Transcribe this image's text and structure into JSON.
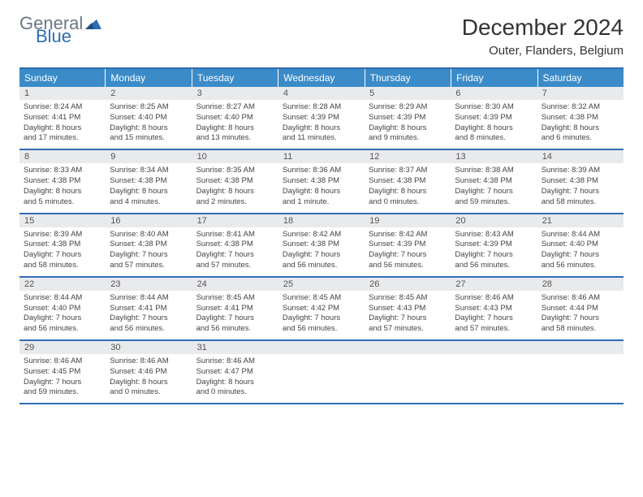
{
  "logo": {
    "general": "General",
    "blue": "Blue"
  },
  "colors": {
    "header_bg": "#3b8bc8",
    "border": "#2f6db2",
    "num_bg": "#e9eaec",
    "logo_gray": "#6b7785",
    "logo_blue": "#2f6db2"
  },
  "title": {
    "month": "December 2024",
    "location": "Outer, Flanders, Belgium"
  },
  "day_headers": [
    "Sunday",
    "Monday",
    "Tuesday",
    "Wednesday",
    "Thursday",
    "Friday",
    "Saturday"
  ],
  "weeks": [
    [
      {
        "n": "1",
        "sr": "Sunrise: 8:24 AM",
        "ss": "Sunset: 4:41 PM",
        "dl1": "Daylight: 8 hours",
        "dl2": "and 17 minutes."
      },
      {
        "n": "2",
        "sr": "Sunrise: 8:25 AM",
        "ss": "Sunset: 4:40 PM",
        "dl1": "Daylight: 8 hours",
        "dl2": "and 15 minutes."
      },
      {
        "n": "3",
        "sr": "Sunrise: 8:27 AM",
        "ss": "Sunset: 4:40 PM",
        "dl1": "Daylight: 8 hours",
        "dl2": "and 13 minutes."
      },
      {
        "n": "4",
        "sr": "Sunrise: 8:28 AM",
        "ss": "Sunset: 4:39 PM",
        "dl1": "Daylight: 8 hours",
        "dl2": "and 11 minutes."
      },
      {
        "n": "5",
        "sr": "Sunrise: 8:29 AM",
        "ss": "Sunset: 4:39 PM",
        "dl1": "Daylight: 8 hours",
        "dl2": "and 9 minutes."
      },
      {
        "n": "6",
        "sr": "Sunrise: 8:30 AM",
        "ss": "Sunset: 4:39 PM",
        "dl1": "Daylight: 8 hours",
        "dl2": "and 8 minutes."
      },
      {
        "n": "7",
        "sr": "Sunrise: 8:32 AM",
        "ss": "Sunset: 4:38 PM",
        "dl1": "Daylight: 8 hours",
        "dl2": "and 6 minutes."
      }
    ],
    [
      {
        "n": "8",
        "sr": "Sunrise: 8:33 AM",
        "ss": "Sunset: 4:38 PM",
        "dl1": "Daylight: 8 hours",
        "dl2": "and 5 minutes."
      },
      {
        "n": "9",
        "sr": "Sunrise: 8:34 AM",
        "ss": "Sunset: 4:38 PM",
        "dl1": "Daylight: 8 hours",
        "dl2": "and 4 minutes."
      },
      {
        "n": "10",
        "sr": "Sunrise: 8:35 AM",
        "ss": "Sunset: 4:38 PM",
        "dl1": "Daylight: 8 hours",
        "dl2": "and 2 minutes."
      },
      {
        "n": "11",
        "sr": "Sunrise: 8:36 AM",
        "ss": "Sunset: 4:38 PM",
        "dl1": "Daylight: 8 hours",
        "dl2": "and 1 minute."
      },
      {
        "n": "12",
        "sr": "Sunrise: 8:37 AM",
        "ss": "Sunset: 4:38 PM",
        "dl1": "Daylight: 8 hours",
        "dl2": "and 0 minutes."
      },
      {
        "n": "13",
        "sr": "Sunrise: 8:38 AM",
        "ss": "Sunset: 4:38 PM",
        "dl1": "Daylight: 7 hours",
        "dl2": "and 59 minutes."
      },
      {
        "n": "14",
        "sr": "Sunrise: 8:39 AM",
        "ss": "Sunset: 4:38 PM",
        "dl1": "Daylight: 7 hours",
        "dl2": "and 58 minutes."
      }
    ],
    [
      {
        "n": "15",
        "sr": "Sunrise: 8:39 AM",
        "ss": "Sunset: 4:38 PM",
        "dl1": "Daylight: 7 hours",
        "dl2": "and 58 minutes."
      },
      {
        "n": "16",
        "sr": "Sunrise: 8:40 AM",
        "ss": "Sunset: 4:38 PM",
        "dl1": "Daylight: 7 hours",
        "dl2": "and 57 minutes."
      },
      {
        "n": "17",
        "sr": "Sunrise: 8:41 AM",
        "ss": "Sunset: 4:38 PM",
        "dl1": "Daylight: 7 hours",
        "dl2": "and 57 minutes."
      },
      {
        "n": "18",
        "sr": "Sunrise: 8:42 AM",
        "ss": "Sunset: 4:38 PM",
        "dl1": "Daylight: 7 hours",
        "dl2": "and 56 minutes."
      },
      {
        "n": "19",
        "sr": "Sunrise: 8:42 AM",
        "ss": "Sunset: 4:39 PM",
        "dl1": "Daylight: 7 hours",
        "dl2": "and 56 minutes."
      },
      {
        "n": "20",
        "sr": "Sunrise: 8:43 AM",
        "ss": "Sunset: 4:39 PM",
        "dl1": "Daylight: 7 hours",
        "dl2": "and 56 minutes."
      },
      {
        "n": "21",
        "sr": "Sunrise: 8:44 AM",
        "ss": "Sunset: 4:40 PM",
        "dl1": "Daylight: 7 hours",
        "dl2": "and 56 minutes."
      }
    ],
    [
      {
        "n": "22",
        "sr": "Sunrise: 8:44 AM",
        "ss": "Sunset: 4:40 PM",
        "dl1": "Daylight: 7 hours",
        "dl2": "and 56 minutes."
      },
      {
        "n": "23",
        "sr": "Sunrise: 8:44 AM",
        "ss": "Sunset: 4:41 PM",
        "dl1": "Daylight: 7 hours",
        "dl2": "and 56 minutes."
      },
      {
        "n": "24",
        "sr": "Sunrise: 8:45 AM",
        "ss": "Sunset: 4:41 PM",
        "dl1": "Daylight: 7 hours",
        "dl2": "and 56 minutes."
      },
      {
        "n": "25",
        "sr": "Sunrise: 8:45 AM",
        "ss": "Sunset: 4:42 PM",
        "dl1": "Daylight: 7 hours",
        "dl2": "and 56 minutes."
      },
      {
        "n": "26",
        "sr": "Sunrise: 8:45 AM",
        "ss": "Sunset: 4:43 PM",
        "dl1": "Daylight: 7 hours",
        "dl2": "and 57 minutes."
      },
      {
        "n": "27",
        "sr": "Sunrise: 8:46 AM",
        "ss": "Sunset: 4:43 PM",
        "dl1": "Daylight: 7 hours",
        "dl2": "and 57 minutes."
      },
      {
        "n": "28",
        "sr": "Sunrise: 8:46 AM",
        "ss": "Sunset: 4:44 PM",
        "dl1": "Daylight: 7 hours",
        "dl2": "and 58 minutes."
      }
    ],
    [
      {
        "n": "29",
        "sr": "Sunrise: 8:46 AM",
        "ss": "Sunset: 4:45 PM",
        "dl1": "Daylight: 7 hours",
        "dl2": "and 59 minutes."
      },
      {
        "n": "30",
        "sr": "Sunrise: 8:46 AM",
        "ss": "Sunset: 4:46 PM",
        "dl1": "Daylight: 8 hours",
        "dl2": "and 0 minutes."
      },
      {
        "n": "31",
        "sr": "Sunrise: 8:46 AM",
        "ss": "Sunset: 4:47 PM",
        "dl1": "Daylight: 8 hours",
        "dl2": "and 0 minutes."
      },
      {
        "n": "",
        "sr": "",
        "ss": "",
        "dl1": "",
        "dl2": "",
        "empty": true
      },
      {
        "n": "",
        "sr": "",
        "ss": "",
        "dl1": "",
        "dl2": "",
        "empty": true
      },
      {
        "n": "",
        "sr": "",
        "ss": "",
        "dl1": "",
        "dl2": "",
        "empty": true
      },
      {
        "n": "",
        "sr": "",
        "ss": "",
        "dl1": "",
        "dl2": "",
        "empty": true
      }
    ]
  ]
}
